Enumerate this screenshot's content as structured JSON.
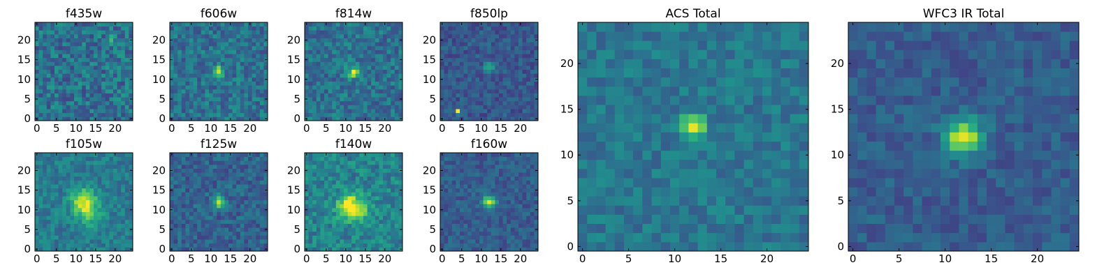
{
  "chart_data": [
    {
      "type": "heatmap",
      "title": "f435w",
      "grid": "25x25 pixels",
      "colormap": "viridis",
      "xlim": [
        0,
        24
      ],
      "ylim": [
        0,
        24
      ],
      "xticks": [
        0,
        5,
        10,
        15,
        20
      ],
      "yticks": [
        0,
        5,
        10,
        15,
        20
      ],
      "peak": {
        "x": 19,
        "y": 20
      },
      "note": "noise dominated, faint peak near (19,20)"
    },
    {
      "type": "heatmap",
      "title": "f606w",
      "grid": "25x25 pixels",
      "colormap": "viridis",
      "xlim": [
        0,
        24
      ],
      "ylim": [
        0,
        24
      ],
      "xticks": [
        0,
        5,
        10,
        15,
        20
      ],
      "yticks": [
        0,
        5,
        10,
        15,
        20
      ],
      "peak": {
        "x": 12,
        "y": 12
      }
    },
    {
      "type": "heatmap",
      "title": "f814w",
      "grid": "25x25 pixels",
      "colormap": "viridis",
      "xlim": [
        0,
        24
      ],
      "ylim": [
        0,
        24
      ],
      "xticks": [
        0,
        5,
        10,
        15,
        20
      ],
      "yticks": [
        0,
        5,
        10,
        15,
        20
      ],
      "peak": {
        "x": 12,
        "y": 12
      }
    },
    {
      "type": "heatmap",
      "title": "f850lp",
      "grid": "25x25 pixels",
      "colormap": "viridis",
      "xlim": [
        0,
        24
      ],
      "ylim": [
        0,
        24
      ],
      "xticks": [
        0,
        5,
        10,
        15,
        20
      ],
      "yticks": [
        0,
        5,
        10,
        15,
        20
      ],
      "peak": {
        "x": 4,
        "y": 2
      },
      "note": "hot pixel near (4,2), faint source near (12,13)"
    },
    {
      "type": "heatmap",
      "title": "f105w",
      "grid": "25x25 pixels",
      "colormap": "viridis",
      "xlim": [
        0,
        24
      ],
      "ylim": [
        0,
        24
      ],
      "xticks": [
        0,
        5,
        10,
        15,
        20
      ],
      "yticks": [
        0,
        5,
        10,
        15,
        20
      ],
      "peak": {
        "x": 12,
        "y": 12
      }
    },
    {
      "type": "heatmap",
      "title": "f125w",
      "grid": "25x25 pixels",
      "colormap": "viridis",
      "xlim": [
        0,
        24
      ],
      "ylim": [
        0,
        24
      ],
      "xticks": [
        0,
        5,
        10,
        15,
        20
      ],
      "yticks": [
        0,
        5,
        10,
        15,
        20
      ],
      "peak": {
        "x": 12,
        "y": 12
      }
    },
    {
      "type": "heatmap",
      "title": "f140w",
      "grid": "25x25 pixels",
      "colormap": "viridis",
      "xlim": [
        0,
        24
      ],
      "ylim": [
        0,
        24
      ],
      "xticks": [
        0,
        5,
        10,
        15,
        20
      ],
      "yticks": [
        0,
        5,
        10,
        15,
        20
      ],
      "peak": {
        "x": 11,
        "y": 11
      }
    },
    {
      "type": "heatmap",
      "title": "f160w",
      "grid": "25x25 pixels",
      "colormap": "viridis",
      "xlim": [
        0,
        24
      ],
      "ylim": [
        0,
        24
      ],
      "xticks": [
        0,
        5,
        10,
        15,
        20
      ],
      "yticks": [
        0,
        5,
        10,
        15,
        20
      ],
      "peak": {
        "x": 12,
        "y": 12
      }
    },
    {
      "type": "heatmap",
      "title": "ACS Total",
      "grid": "25x25 pixels",
      "colormap": "viridis",
      "xlim": [
        0,
        24
      ],
      "ylim": [
        0,
        24
      ],
      "xticks": [
        0,
        5,
        10,
        15,
        20
      ],
      "yticks": [
        0,
        5,
        10,
        15,
        20
      ],
      "peak": {
        "x": 12,
        "y": 13
      }
    },
    {
      "type": "heatmap",
      "title": "WFC3 IR Total",
      "grid": "25x25 pixels",
      "colormap": "viridis",
      "xlim": [
        0,
        24
      ],
      "ylim": [
        0,
        24
      ],
      "xticks": [
        0,
        5,
        10,
        15,
        20
      ],
      "yticks": [
        0,
        5,
        10,
        15,
        20
      ],
      "peak": {
        "x": 12,
        "y": 12
      }
    }
  ],
  "colors": {
    "viridis_low": "#440154",
    "viridis_mid": "#21918c",
    "viridis_high": "#fde725"
  }
}
